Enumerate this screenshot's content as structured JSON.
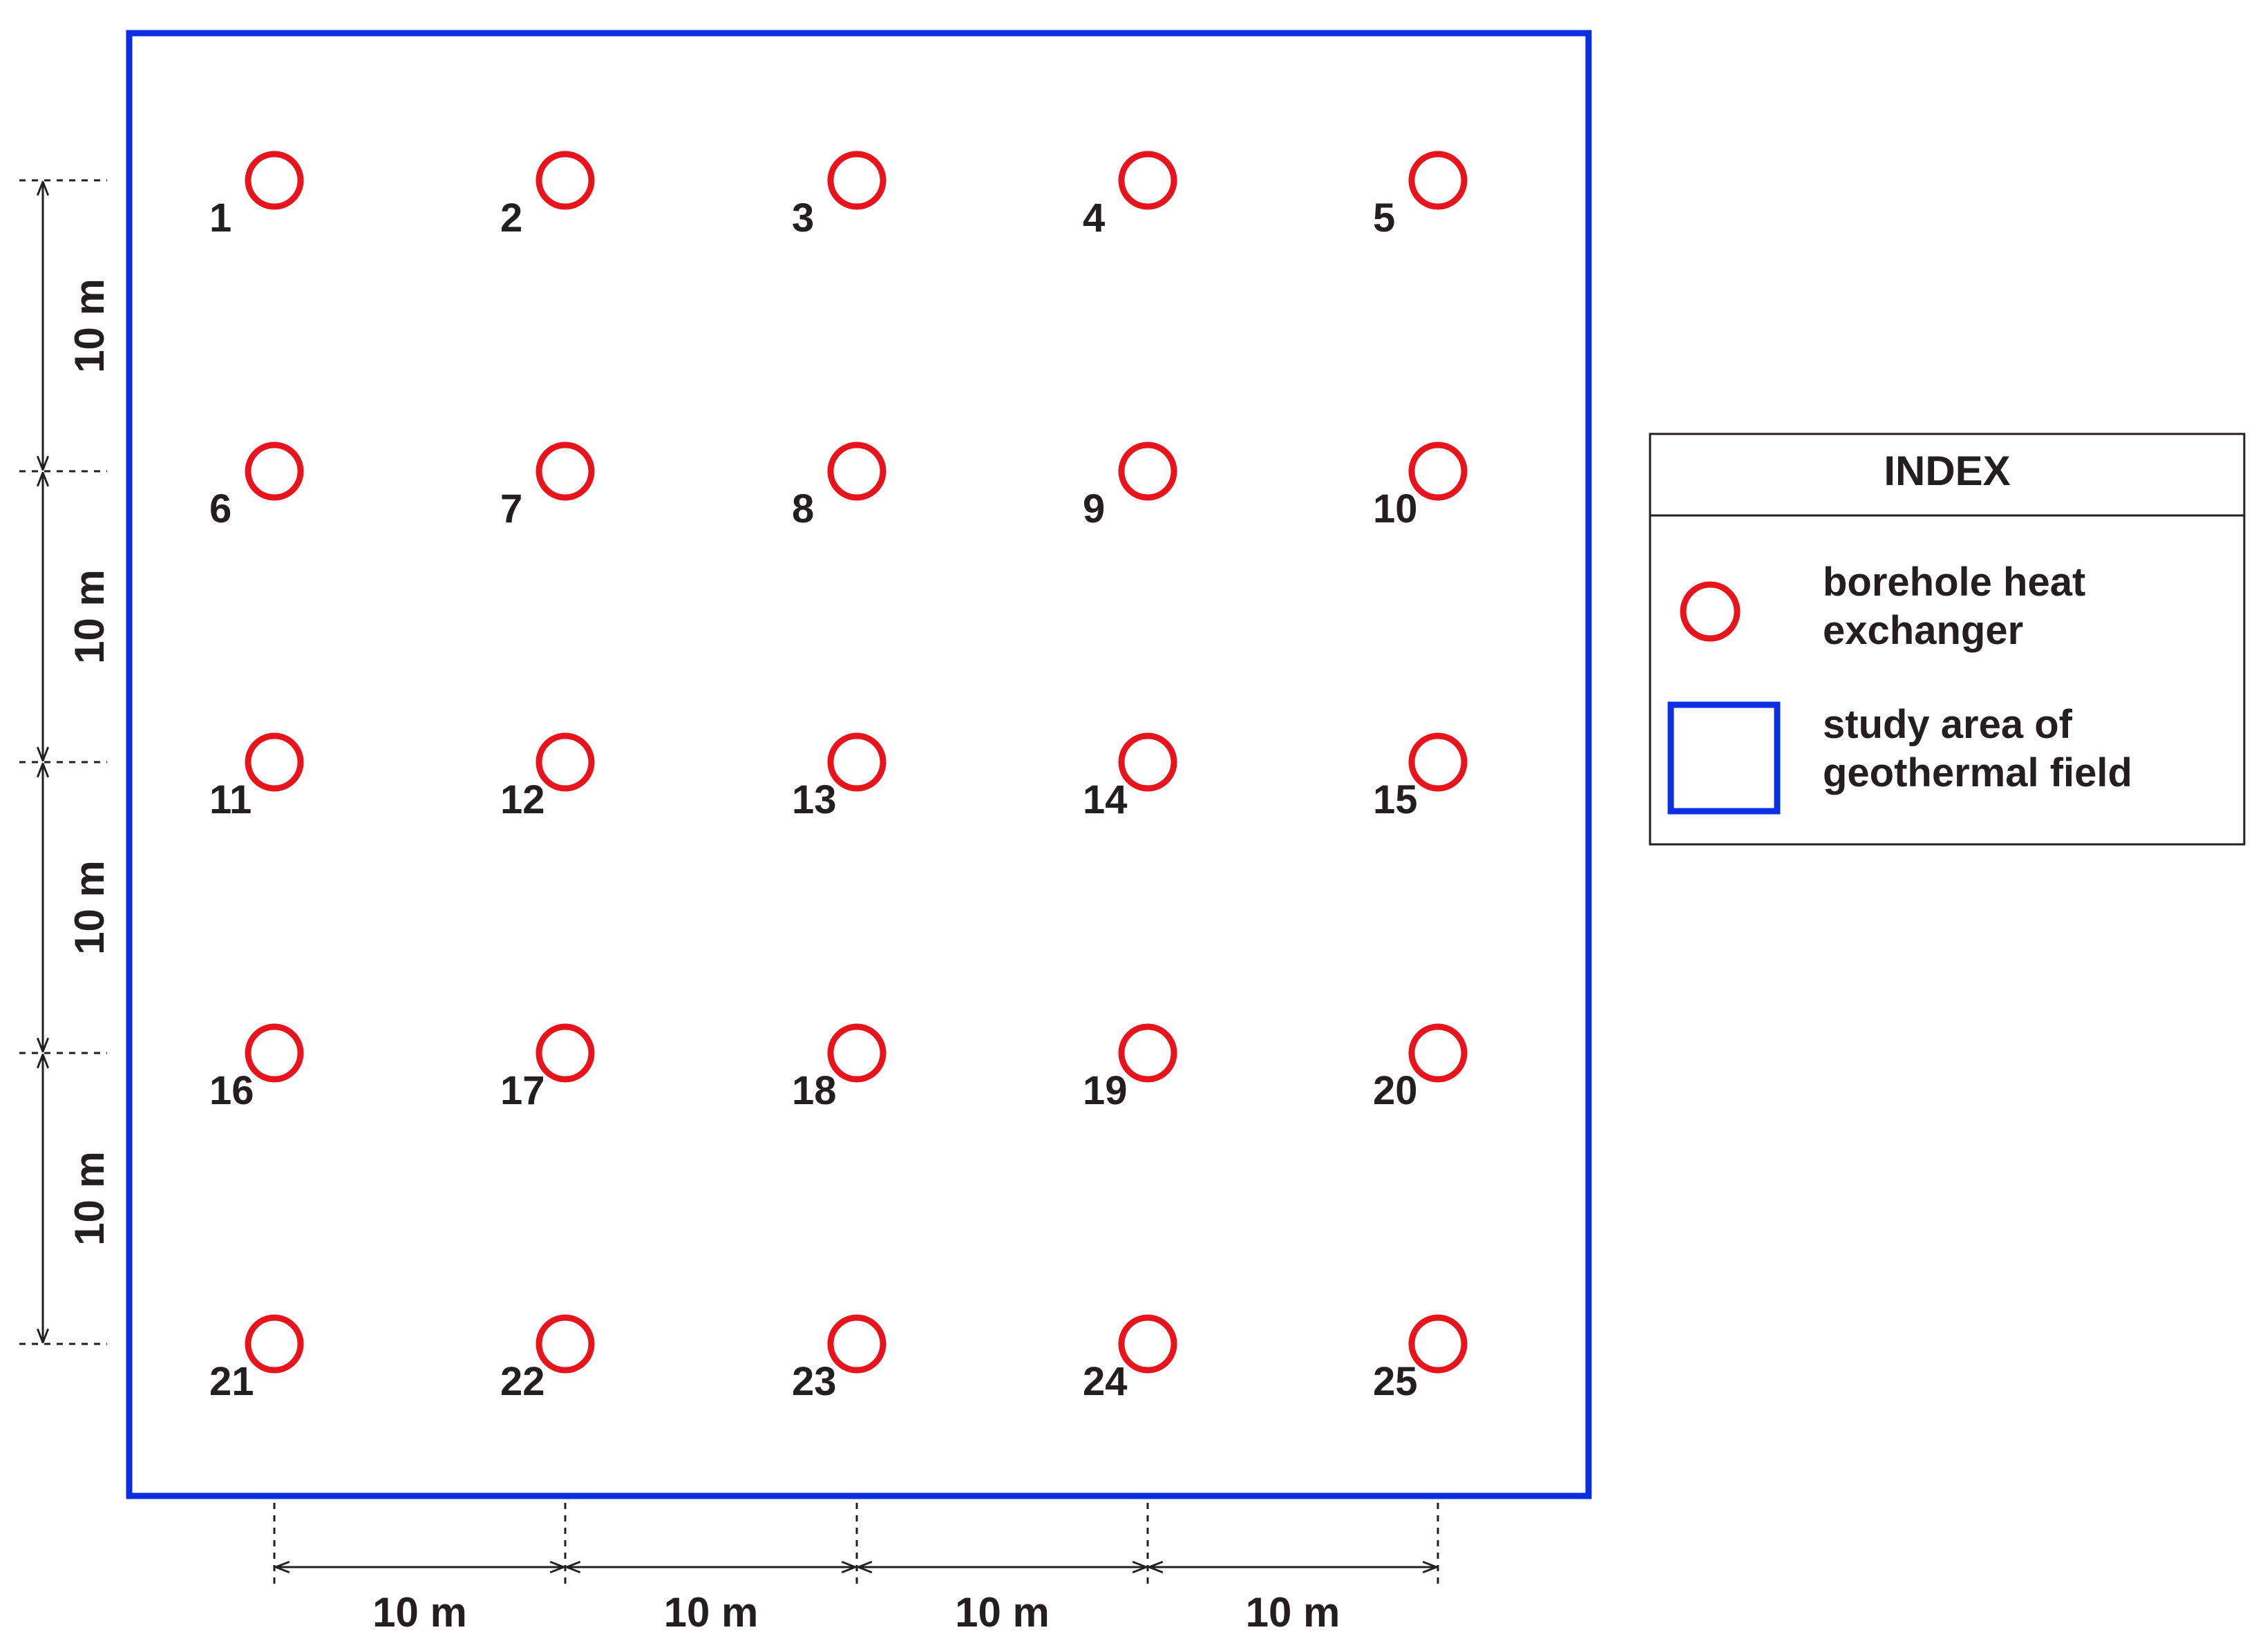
{
  "boreholes": {
    "labels": [
      "1",
      "2",
      "3",
      "4",
      "5",
      "6",
      "7",
      "8",
      "9",
      "10",
      "11",
      "12",
      "13",
      "14",
      "15",
      "16",
      "17",
      "18",
      "19",
      "20",
      "21",
      "22",
      "23",
      "24",
      "25"
    ],
    "rows": 5,
    "cols": 5
  },
  "dimensions": {
    "vertical": [
      "10 m",
      "10 m",
      "10 m",
      "10 m"
    ],
    "horizontal": [
      "10 m",
      "10 m",
      "10 m",
      "10 m"
    ]
  },
  "legend": {
    "title": "INDEX",
    "items": [
      {
        "icon": "red-circle-icon",
        "line1": "borehole heat",
        "line2": "exchanger"
      },
      {
        "icon": "blue-square-icon",
        "line1": "study area of",
        "line2": "geothermal field"
      }
    ]
  },
  "colors": {
    "borehole": "#e8131b",
    "study_area": "#0b2fe0",
    "text": "#231f20",
    "dimension": "#231f20",
    "legend_border": "#231f20"
  }
}
